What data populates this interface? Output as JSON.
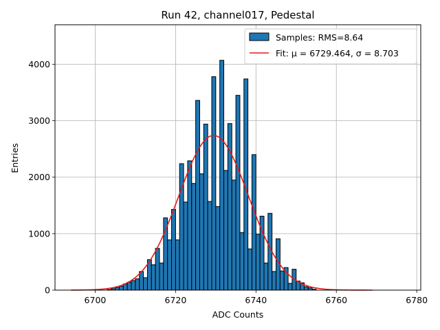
{
  "chart_data": {
    "type": "bar",
    "title": "Run 42, channel017, Pedestal",
    "xlabel": "ADC Counts",
    "ylabel": "Entries",
    "xlim": [
      6690,
      6781
    ],
    "ylim": [
      0,
      4700
    ],
    "x_ticks": [
      "6700",
      "6720",
      "6740",
      "6760",
      "6780"
    ],
    "x_tick_values": [
      6700,
      6720,
      6740,
      6760,
      6780
    ],
    "y_ticks": [
      "0",
      "1000",
      "2000",
      "3000",
      "4000"
    ],
    "y_tick_values": [
      0,
      1000,
      2000,
      3000,
      4000
    ],
    "grid": true,
    "legend_position": "top-right",
    "histogram": {
      "name": "Samples: RMS=8.64",
      "color": "#1f77b4",
      "edge_color": "#000000",
      "bin_width": 1,
      "bin_starts": [
        6703,
        6704,
        6705,
        6706,
        6707,
        6708,
        6709,
        6710,
        6711,
        6712,
        6713,
        6714,
        6715,
        6716,
        6717,
        6718,
        6719,
        6720,
        6721,
        6722,
        6723,
        6724,
        6725,
        6726,
        6727,
        6728,
        6729,
        6730,
        6731,
        6732,
        6733,
        6734,
        6735,
        6736,
        6737,
        6738,
        6739,
        6740,
        6741,
        6742,
        6743,
        6744,
        6745,
        6746,
        6747,
        6748,
        6749,
        6750,
        6751,
        6752,
        6753,
        6754
      ],
      "counts": [
        10,
        25,
        45,
        70,
        110,
        140,
        170,
        200,
        330,
        220,
        540,
        450,
        740,
        480,
        1280,
        890,
        1430,
        890,
        2240,
        1560,
        2290,
        1890,
        3360,
        2060,
        2940,
        1570,
        3780,
        1480,
        4070,
        2120,
        2950,
        1950,
        3450,
        1020,
        3740,
        730,
        2400,
        990,
        1310,
        480,
        1360,
        330,
        910,
        340,
        400,
        120,
        370,
        160,
        130,
        60,
        40,
        15
      ]
    },
    "fit": {
      "name": "Fit: μ = 6729.464, σ = 8.703",
      "color": "#e41a1c",
      "mu": 6729.464,
      "sigma": 8.703,
      "amplitude": 2740,
      "x_range": [
        6694,
        6769
      ]
    }
  }
}
